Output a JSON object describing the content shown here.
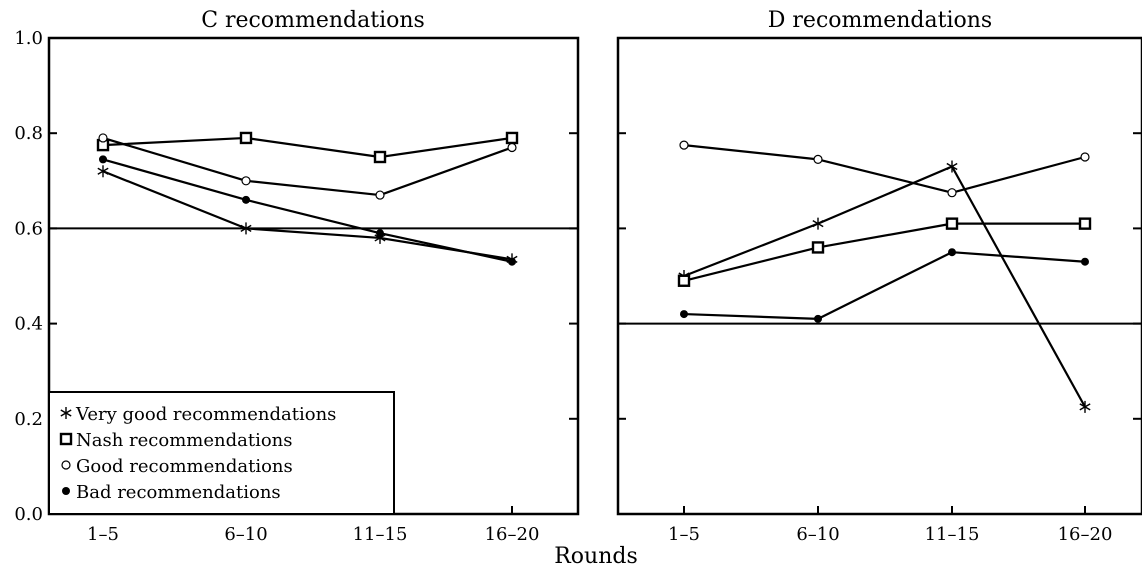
{
  "figure": {
    "xlabel": "Rounds"
  },
  "legend": {
    "entries": [
      {
        "label": "Very good recommendations",
        "marker": "asterisk"
      },
      {
        "label": "Nash recommendations",
        "marker": "open-square"
      },
      {
        "label": "Good recommendations",
        "marker": "open-circle"
      },
      {
        "label": "Bad recommendations",
        "marker": "filled-circle"
      }
    ],
    "placement": "bottom-left of left panel"
  },
  "chart_data": [
    {
      "type": "line",
      "title": "C recommendations",
      "categories": [
        "1–5",
        "6–10",
        "11–15",
        "16–20"
      ],
      "ylim": [
        0.0,
        1.0
      ],
      "yticks": [
        "0.0",
        "0.2",
        "0.4",
        "0.6",
        "0.8",
        "1.0"
      ],
      "reference_line": 0.6,
      "series": [
        {
          "name": "Very good recommendations",
          "marker": "asterisk",
          "values": [
            0.72,
            0.6,
            0.58,
            0.535
          ]
        },
        {
          "name": "Nash recommendations",
          "marker": "open-square",
          "values": [
            0.775,
            0.79,
            0.75,
            0.79
          ]
        },
        {
          "name": "Good recommendations",
          "marker": "open-circle",
          "values": [
            0.79,
            0.7,
            0.67,
            0.77
          ]
        },
        {
          "name": "Bad recommendations",
          "marker": "filled-circle",
          "values": [
            0.745,
            0.66,
            0.59,
            0.53
          ]
        }
      ]
    },
    {
      "type": "line",
      "title": "D recommendations",
      "categories": [
        "1–5",
        "6–10",
        "11–15",
        "16–20"
      ],
      "ylim": [
        0.0,
        1.0
      ],
      "reference_line": 0.4,
      "series": [
        {
          "name": "Very good recommendations",
          "marker": "asterisk",
          "values": [
            0.5,
            0.61,
            0.73,
            0.225
          ]
        },
        {
          "name": "Nash recommendations",
          "marker": "open-square",
          "values": [
            0.49,
            0.56,
            0.61,
            0.61
          ]
        },
        {
          "name": "Good recommendations",
          "marker": "open-circle",
          "values": [
            0.775,
            0.745,
            0.675,
            0.75
          ]
        },
        {
          "name": "Bad recommendations",
          "marker": "filled-circle",
          "values": [
            0.42,
            0.41,
            0.55,
            0.53
          ]
        }
      ]
    }
  ]
}
